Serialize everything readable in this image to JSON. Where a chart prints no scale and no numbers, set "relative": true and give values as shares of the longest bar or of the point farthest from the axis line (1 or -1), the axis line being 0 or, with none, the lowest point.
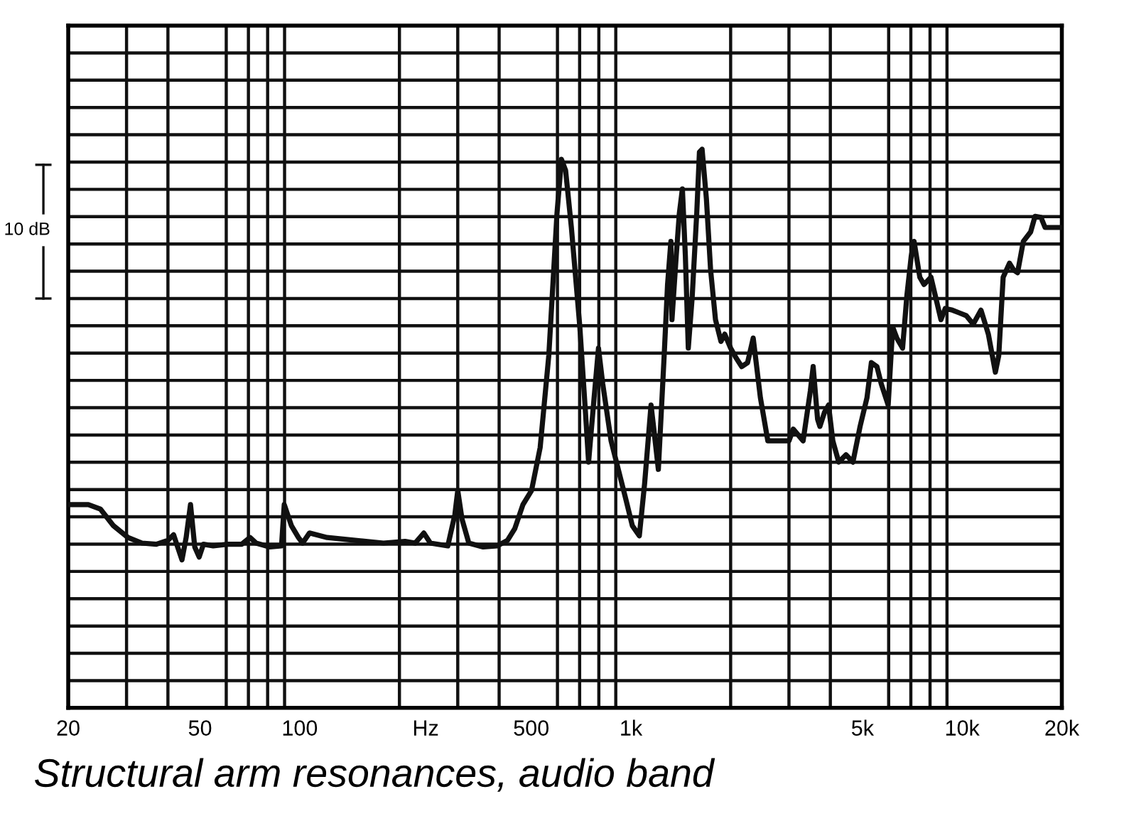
{
  "chart_data": {
    "type": "line",
    "title": "Structural arm resonances, audio band",
    "relative": true,
    "log": "x",
    "grid": true,
    "tick_labels": "x",
    "annotations": [
      "10 dB"
    ],
    "xlim": [
      20,
      20000
    ],
    "xticks": [
      20,
      50,
      100,
      {
        "value": 240,
        "label": "Hz"
      },
      500,
      {
        "value": 1000,
        "label": "1k"
      },
      {
        "value": 5000,
        "label": "5k"
      },
      {
        "value": 10000,
        "label": "10k"
      },
      {
        "value": 20000,
        "label": "20k"
      }
    ],
    "series": [
      {
        "color": "#111111",
        "x": [
          20,
          23,
          25,
          27.4,
          30.3,
          33.4,
          36.9,
          40,
          41.6,
          42.8,
          44.1,
          45.4,
          46.8,
          48.2,
          49.7,
          51.2,
          54.8,
          60.5,
          66.8,
          70.8,
          73.8,
          81.3,
          88.1,
          89.8,
          94.4,
          99.1,
          102,
          107,
          121,
          147,
          179,
          208,
          223,
          237,
          248,
          280,
          294,
          300,
          309,
          324,
          358,
          395,
          424,
          446,
          472,
          501,
          532,
          565,
          598,
          617,
          635,
          661,
          701,
          729,
          745,
          774,
          798,
          822,
          871,
          962,
          1010,
          1060,
          1100,
          1150,
          1170,
          1210,
          1260,
          1290,
          1320,
          1330,
          1370,
          1400,
          1430,
          1460,
          1490,
          1530,
          1580,
          1610,
          1640,
          1690,
          1740,
          1800,
          1870,
          1920,
          2000,
          2080,
          2160,
          2250,
          2340,
          2460,
          2590,
          2800,
          3000,
          3090,
          3310,
          3480,
          3550,
          3660,
          3720,
          3840,
          3950,
          4070,
          4240,
          4460,
          4680,
          4920,
          5160,
          5320,
          5530,
          5700,
          5980,
          6170,
          6350,
          6610,
          6810,
          7020,
          7160,
          7450,
          7670,
          8050,
          8630,
          8890,
          9350,
          9820,
          10300,
          10800,
          11400,
          12000,
          12600,
          12900,
          13300,
          13900,
          14300,
          14700,
          15300,
          16100,
          16600,
          17300,
          17800,
          18700,
          20000
        ],
        "values": [
          0.364,
          0.364,
          0.356,
          0.326,
          0.305,
          0.295,
          0.293,
          0.3,
          0.31,
          0.288,
          0.265,
          0.305,
          0.364,
          0.288,
          0.27,
          0.293,
          0.29,
          0.293,
          0.293,
          0.305,
          0.295,
          0.288,
          0.29,
          0.364,
          0.326,
          0.305,
          0.295,
          0.313,
          0.305,
          0.3,
          0.295,
          0.298,
          0.295,
          0.313,
          0.295,
          0.29,
          0.346,
          0.389,
          0.338,
          0.295,
          0.288,
          0.29,
          0.3,
          0.321,
          0.364,
          0.389,
          0.466,
          0.631,
          0.885,
          0.982,
          0.962,
          0.86,
          0.682,
          0.529,
          0.44,
          0.555,
          0.644,
          0.58,
          0.478,
          0.377,
          0.326,
          0.308,
          0.402,
          0.542,
          0.504,
          0.427,
          0.631,
          0.758,
          0.835,
          0.695,
          0.809,
          0.885,
          0.929,
          0.809,
          0.644,
          0.733,
          0.885,
          0.995,
          1.0,
          0.911,
          0.784,
          0.695,
          0.656,
          0.669,
          0.644,
          0.626,
          0.611,
          0.618,
          0.662,
          0.555,
          0.478,
          0.478,
          0.478,
          0.499,
          0.478,
          0.567,
          0.611,
          0.517,
          0.504,
          0.529,
          0.542,
          0.478,
          0.44,
          0.453,
          0.44,
          0.504,
          0.555,
          0.618,
          0.611,
          0.58,
          0.542,
          0.682,
          0.662,
          0.644,
          0.738,
          0.809,
          0.835,
          0.771,
          0.758,
          0.771,
          0.695,
          0.715,
          0.712,
          0.707,
          0.702,
          0.687,
          0.712,
          0.669,
          0.601,
          0.631,
          0.771,
          0.796,
          0.784,
          0.779,
          0.835,
          0.852,
          0.88,
          0.878,
          0.86,
          0.86,
          0.86
        ]
      }
    ]
  }
}
